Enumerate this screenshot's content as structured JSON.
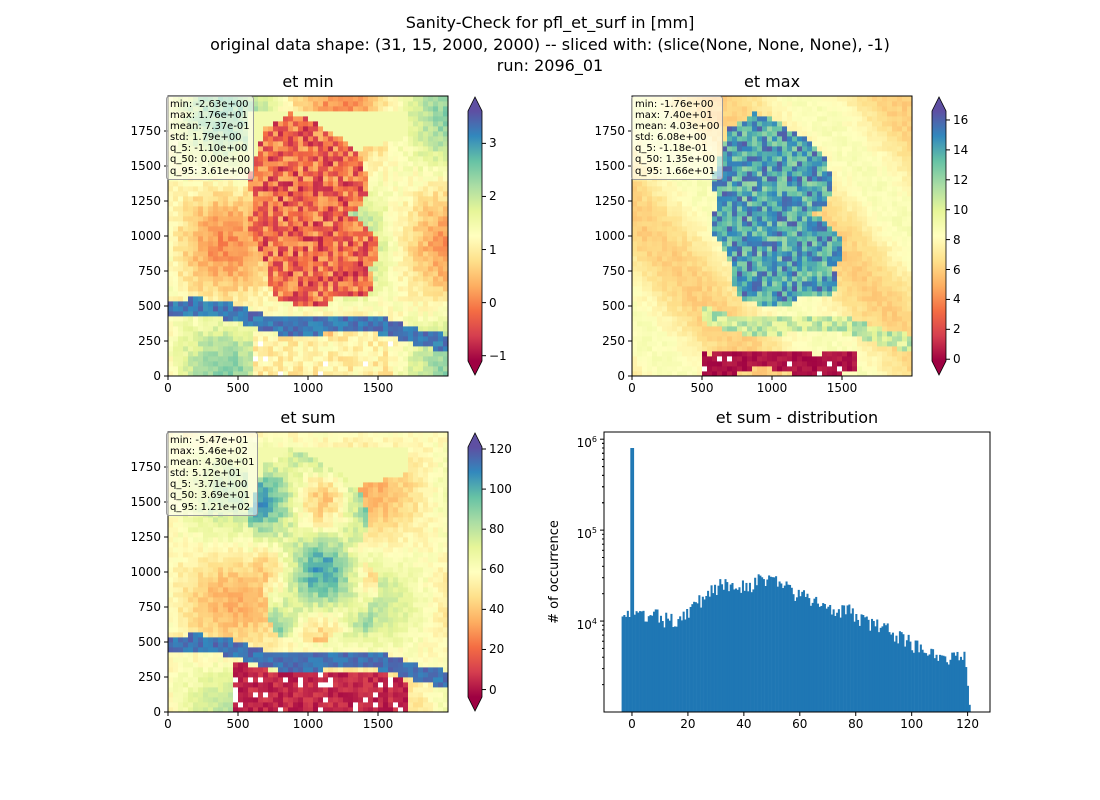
{
  "figure": {
    "title_lines": [
      "Sanity-Check for pfl_et_surf in [mm]",
      "original data shape: (31, 15, 2000, 2000) -- sliced with: (slice(None, None, None), -1)",
      "run: 2096_01"
    ]
  },
  "colormap": [
    "#9e0142",
    "#d53e4f",
    "#f46d43",
    "#fdae61",
    "#fee08b",
    "#ffffbf",
    "#e6f598",
    "#abdda4",
    "#66c2a5",
    "#3288bd",
    "#5e4fa2"
  ],
  "maps": [
    {
      "title": "et min",
      "stats": [
        "min: -2.63e+00",
        "max: 1.76e+01",
        "mean: 7.37e-01",
        "std: 1.79e+00",
        "q_5: -1.10e+00",
        "q_50: 0.00e+00",
        "q_95: 3.61e+00"
      ],
      "x_ticks": [
        "0",
        "500",
        "1000",
        "1500"
      ],
      "y_ticks": [
        "0",
        "250",
        "500",
        "750",
        "1000",
        "1250",
        "1500",
        "1750"
      ],
      "cbar_ticks": [
        "−1",
        "0",
        "1",
        "2",
        "3"
      ]
    },
    {
      "title": "et max",
      "stats": [
        "min: -1.76e+00",
        "max: 7.40e+01",
        "mean: 4.03e+00",
        "std: 6.08e+00",
        "q_5: -1.18e-01",
        "q_50: 1.35e+00",
        "q_95: 1.66e+01"
      ],
      "x_ticks": [
        "0",
        "500",
        "1000",
        "1500"
      ],
      "y_ticks": [
        "0",
        "250",
        "500",
        "750",
        "1000",
        "1250",
        "1500",
        "1750"
      ],
      "cbar_ticks": [
        "0",
        "2",
        "4",
        "6",
        "8",
        "10",
        "12",
        "14",
        "16"
      ]
    },
    {
      "title": "et sum",
      "stats": [
        "min: -5.47e+01",
        "max: 5.46e+02",
        "mean: 4.30e+01",
        "std: 5.12e+01",
        "q_5: -3.71e+00",
        "q_50: 3.69e+01",
        "q_95: 1.21e+02"
      ],
      "x_ticks": [
        "0",
        "500",
        "1000",
        "1500"
      ],
      "y_ticks": [
        "0",
        "250",
        "500",
        "750",
        "1000",
        "1250",
        "1500",
        "1750"
      ],
      "cbar_ticks": [
        "0",
        "20",
        "40",
        "60",
        "80",
        "100",
        "120"
      ]
    }
  ],
  "chart_data": [
    {
      "type": "heatmap",
      "title": "et min",
      "xlim": [
        0,
        2000
      ],
      "ylim": [
        0,
        2000
      ],
      "color_range": [
        -1.1,
        3.61
      ],
      "colorbar_extend": "both"
    },
    {
      "type": "heatmap",
      "title": "et max",
      "xlim": [
        0,
        2000
      ],
      "ylim": [
        0,
        2000
      ],
      "color_range": [
        -0.118,
        16.6
      ],
      "colorbar_extend": "both"
    },
    {
      "type": "heatmap",
      "title": "et sum",
      "xlim": [
        0,
        2000
      ],
      "ylim": [
        0,
        2000
      ],
      "color_range": [
        -3.71,
        121
      ],
      "colorbar_extend": "both"
    },
    {
      "type": "bar",
      "title": "et sum - distribution",
      "ylabel": "# of occurrence",
      "xlabel": "",
      "y_scale": "log",
      "ylim": [
        1000,
        1200000
      ],
      "xlim": [
        -10,
        128
      ],
      "x_ticks": [
        "0",
        "20",
        "40",
        "60",
        "80",
        "100",
        "120"
      ],
      "y_ticks": [
        "10^4",
        "10^5",
        "10^6"
      ],
      "color": "#1f77b4",
      "bin_range": [
        -3.71,
        121
      ],
      "bin_count": 200,
      "bins": [
        {
          "x": -3.4,
          "y": 14000
        },
        {
          "x": -2.0,
          "y": 12500
        },
        {
          "x": -1.0,
          "y": 12000
        },
        {
          "x": 0.0,
          "y": 800000
        },
        {
          "x": 1.0,
          "y": 11000
        },
        {
          "x": 3.0,
          "y": 11500
        },
        {
          "x": 5.0,
          "y": 11000
        },
        {
          "x": 7.0,
          "y": 10500
        },
        {
          "x": 9.0,
          "y": 11500
        },
        {
          "x": 11.0,
          "y": 10000
        },
        {
          "x": 13.0,
          "y": 10500
        },
        {
          "x": 15.0,
          "y": 10000
        },
        {
          "x": 17.0,
          "y": 11000
        },
        {
          "x": 19.0,
          "y": 12500
        },
        {
          "x": 21.0,
          "y": 13500
        },
        {
          "x": 23.0,
          "y": 15000
        },
        {
          "x": 25.0,
          "y": 17500
        },
        {
          "x": 27.0,
          "y": 21000
        },
        {
          "x": 29.0,
          "y": 23500
        },
        {
          "x": 31.0,
          "y": 24000
        },
        {
          "x": 33.0,
          "y": 24500
        },
        {
          "x": 35.0,
          "y": 24500
        },
        {
          "x": 37.0,
          "y": 25000
        },
        {
          "x": 39.0,
          "y": 25000
        },
        {
          "x": 41.0,
          "y": 25000
        },
        {
          "x": 43.0,
          "y": 26000
        },
        {
          "x": 45.0,
          "y": 27000
        },
        {
          "x": 47.0,
          "y": 29000
        },
        {
          "x": 49.0,
          "y": 30000
        },
        {
          "x": 51.0,
          "y": 29000
        },
        {
          "x": 53.0,
          "y": 26000
        },
        {
          "x": 55.0,
          "y": 24000
        },
        {
          "x": 57.0,
          "y": 21500
        },
        {
          "x": 59.0,
          "y": 19500
        },
        {
          "x": 61.0,
          "y": 18500
        },
        {
          "x": 63.0,
          "y": 17500
        },
        {
          "x": 65.0,
          "y": 16500
        },
        {
          "x": 67.0,
          "y": 15500
        },
        {
          "x": 69.0,
          "y": 15000
        },
        {
          "x": 71.0,
          "y": 14500
        },
        {
          "x": 73.0,
          "y": 14000
        },
        {
          "x": 75.0,
          "y": 13500
        },
        {
          "x": 77.0,
          "y": 13000
        },
        {
          "x": 79.0,
          "y": 12000
        },
        {
          "x": 81.0,
          "y": 11000
        },
        {
          "x": 83.0,
          "y": 10000
        },
        {
          "x": 85.0,
          "y": 9500
        },
        {
          "x": 87.0,
          "y": 9000
        },
        {
          "x": 89.0,
          "y": 8500
        },
        {
          "x": 91.0,
          "y": 8000
        },
        {
          "x": 93.0,
          "y": 7500
        },
        {
          "x": 95.0,
          "y": 7000
        },
        {
          "x": 97.0,
          "y": 6500
        },
        {
          "x": 99.0,
          "y": 6000
        },
        {
          "x": 101.0,
          "y": 5500
        },
        {
          "x": 103.0,
          "y": 5000
        },
        {
          "x": 105.0,
          "y": 5200
        },
        {
          "x": 107.0,
          "y": 4800
        },
        {
          "x": 109.0,
          "y": 4500
        },
        {
          "x": 111.0,
          "y": 4200
        },
        {
          "x": 113.0,
          "y": 4000
        },
        {
          "x": 115.0,
          "y": 3800
        },
        {
          "x": 117.0,
          "y": 4200
        },
        {
          "x": 119.0,
          "y": 4700
        },
        {
          "x": 120.5,
          "y": 1200
        }
      ]
    }
  ]
}
